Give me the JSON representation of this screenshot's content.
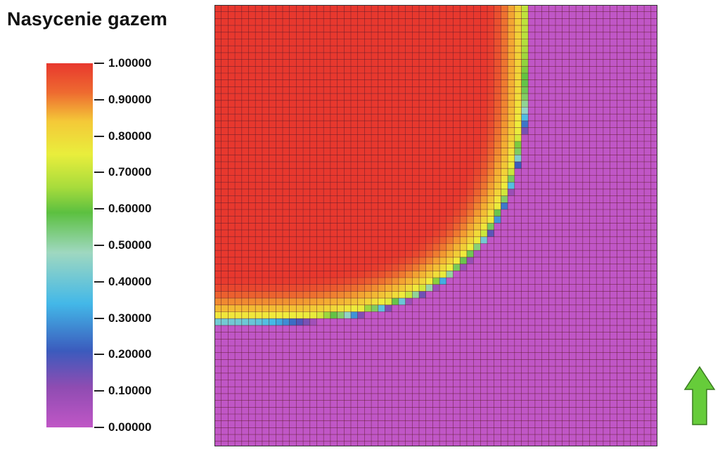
{
  "title": "Nasycenie gazem",
  "legend": {
    "ticks": [
      "1.00000",
      "0.90000",
      "0.80000",
      "0.70000",
      "0.60000",
      "0.50000",
      "0.40000",
      "0.30000",
      "0.20000",
      "0.10000",
      "0.00000"
    ],
    "colors": [
      "#e8382e",
      "#ee7a30",
      "#f4c938",
      "#e9ee3c",
      "#a8dc3c",
      "#5cc040",
      "#9fd8c0",
      "#43b8e8",
      "#3b5bbd",
      "#8f4cb2",
      "#c056c6"
    ]
  },
  "field": {
    "high_color": "#e8382e",
    "low_color": "#c154c6",
    "grid_color": "#5a1a28"
  },
  "arrow": {
    "color": "#66cc3a",
    "direction": "up"
  }
}
